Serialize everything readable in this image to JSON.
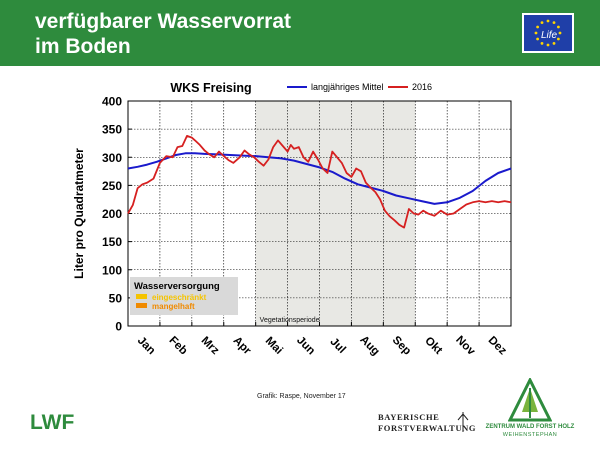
{
  "header": {
    "title": "verfügbarer Wasservorrat\nim Boden"
  },
  "logos": {
    "eu_text": "Life",
    "lwf": "LWF",
    "bayern_line1": "BAYERISCHE",
    "bayern_line2": "FORSTVERWALTUNG",
    "zwfh_line1": "ZENTRUM WALD FORST HOLZ",
    "zwfh_line2": "WEIHENSTEPHAN"
  },
  "credit": "Grafik: Raspe, November 17",
  "colors": {
    "header": "#2e8b3d",
    "mean": "#1a1acc",
    "y2016": "#d62020",
    "shade": "#e8e8e4",
    "eingeschraenkt": "#f5c400",
    "mangelhaft": "#f08a00"
  },
  "chart_data": {
    "type": "line",
    "title": "WKS Freising",
    "ylabel": "Liter pro Quadratmeter",
    "xlabel": "",
    "ylim": [
      0,
      400
    ],
    "yticks": [
      0,
      50,
      100,
      150,
      200,
      250,
      300,
      350,
      400
    ],
    "months": [
      "Jan",
      "Feb",
      "Mrz",
      "Apr",
      "Mai",
      "Jun",
      "Jul",
      "Aug",
      "Sep",
      "Okt",
      "Nov",
      "Dez"
    ],
    "grid": true,
    "legend_position": "top",
    "shaded_band": {
      "label": "Vegetationsperiode",
      "from_month": 5,
      "to_month": 9
    },
    "supply_legend": {
      "title": "Wasserversorgung",
      "items": [
        {
          "label": "eingeschränkt",
          "color": "#f5c400"
        },
        {
          "label": "mangelhaft",
          "color": "#f08a00"
        }
      ]
    },
    "series": [
      {
        "name": "langjähriges Mittel",
        "color": "#1a1acc",
        "x": [
          0,
          0.3,
          0.6,
          0.9,
          1.2,
          1.5,
          1.8,
          2.1,
          2.4,
          2.8,
          3.2,
          3.6,
          4,
          4.4,
          4.8,
          5.2,
          5.6,
          6,
          6.4,
          6.8,
          7.2,
          7.6,
          8,
          8.4,
          8.8,
          9.2,
          9.6,
          10,
          10.4,
          10.8,
          11.2,
          11.6,
          12
        ],
        "y": [
          280,
          283,
          287,
          292,
          298,
          304,
          307,
          307,
          306,
          305,
          304,
          303,
          302,
          300,
          298,
          294,
          288,
          282,
          274,
          262,
          252,
          246,
          240,
          232,
          227,
          222,
          217,
          220,
          228,
          240,
          258,
          272,
          280
        ]
      },
      {
        "name": "2016",
        "color": "#d62020",
        "x": [
          0,
          0.15,
          0.3,
          0.45,
          0.6,
          0.8,
          1,
          1.2,
          1.4,
          1.55,
          1.7,
          1.85,
          2,
          2.1,
          2.25,
          2.4,
          2.55,
          2.7,
          2.85,
          3,
          3.15,
          3.3,
          3.5,
          3.65,
          3.8,
          3.95,
          4.1,
          4.25,
          4.4,
          4.55,
          4.7,
          4.85,
          5,
          5.1,
          5.2,
          5.35,
          5.5,
          5.65,
          5.8,
          5.95,
          6.1,
          6.25,
          6.4,
          6.55,
          6.7,
          6.85,
          7,
          7.15,
          7.3,
          7.45,
          7.6,
          7.75,
          7.9,
          8.05,
          8.2,
          8.35,
          8.5,
          8.65,
          8.8,
          8.95,
          9.1,
          9.25,
          9.4,
          9.6,
          9.8,
          10,
          10.2,
          10.4,
          10.6,
          10.8,
          11,
          11.2,
          11.4,
          11.6,
          11.8,
          12
        ],
        "y": [
          200,
          215,
          245,
          252,
          255,
          262,
          290,
          302,
          300,
          318,
          320,
          338,
          335,
          330,
          322,
          312,
          305,
          300,
          310,
          302,
          295,
          290,
          300,
          312,
          305,
          300,
          292,
          285,
          296,
          318,
          330,
          320,
          310,
          322,
          315,
          318,
          300,
          292,
          310,
          296,
          280,
          272,
          310,
          300,
          290,
          272,
          265,
          280,
          275,
          255,
          246,
          238,
          225,
          205,
          195,
          188,
          180,
          175,
          208,
          200,
          198,
          205,
          200,
          196,
          205,
          198,
          200,
          208,
          216,
          220,
          222,
          220,
          222,
          220,
          222,
          220
        ]
      }
    ]
  }
}
